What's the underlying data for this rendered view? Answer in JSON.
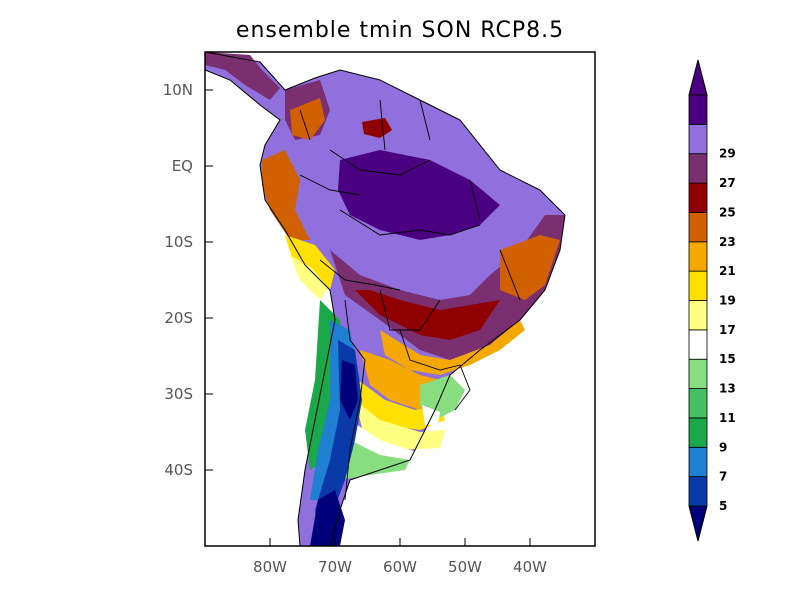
{
  "title": "ensemble tmin SON RCP8.5",
  "map": {
    "x_ticks": [
      "80W",
      "70W",
      "60W",
      "50W",
      "40W"
    ],
    "y_ticks": [
      "10N",
      "EQ",
      "10S",
      "20S",
      "30S",
      "40S"
    ],
    "lon_range": [
      -90,
      -30
    ],
    "lat_range": [
      -50,
      15
    ]
  },
  "colorbar": {
    "levels": [
      "5",
      "7",
      "9",
      "11",
      "13",
      "15",
      "17",
      "19",
      "21",
      "23",
      "25",
      "27",
      "29"
    ],
    "colors": [
      "#0a3aa8",
      "#1f7fd0",
      "#1aa84a",
      "#44c060",
      "#88dd80",
      "#ffffff",
      "#ffff80",
      "#ffe000",
      "#f5a800",
      "#d06000",
      "#900000",
      "#7a3070",
      "#9070dc",
      "#4a0080"
    ],
    "under_color": "#00007a",
    "over_color": "#4a0080"
  }
}
